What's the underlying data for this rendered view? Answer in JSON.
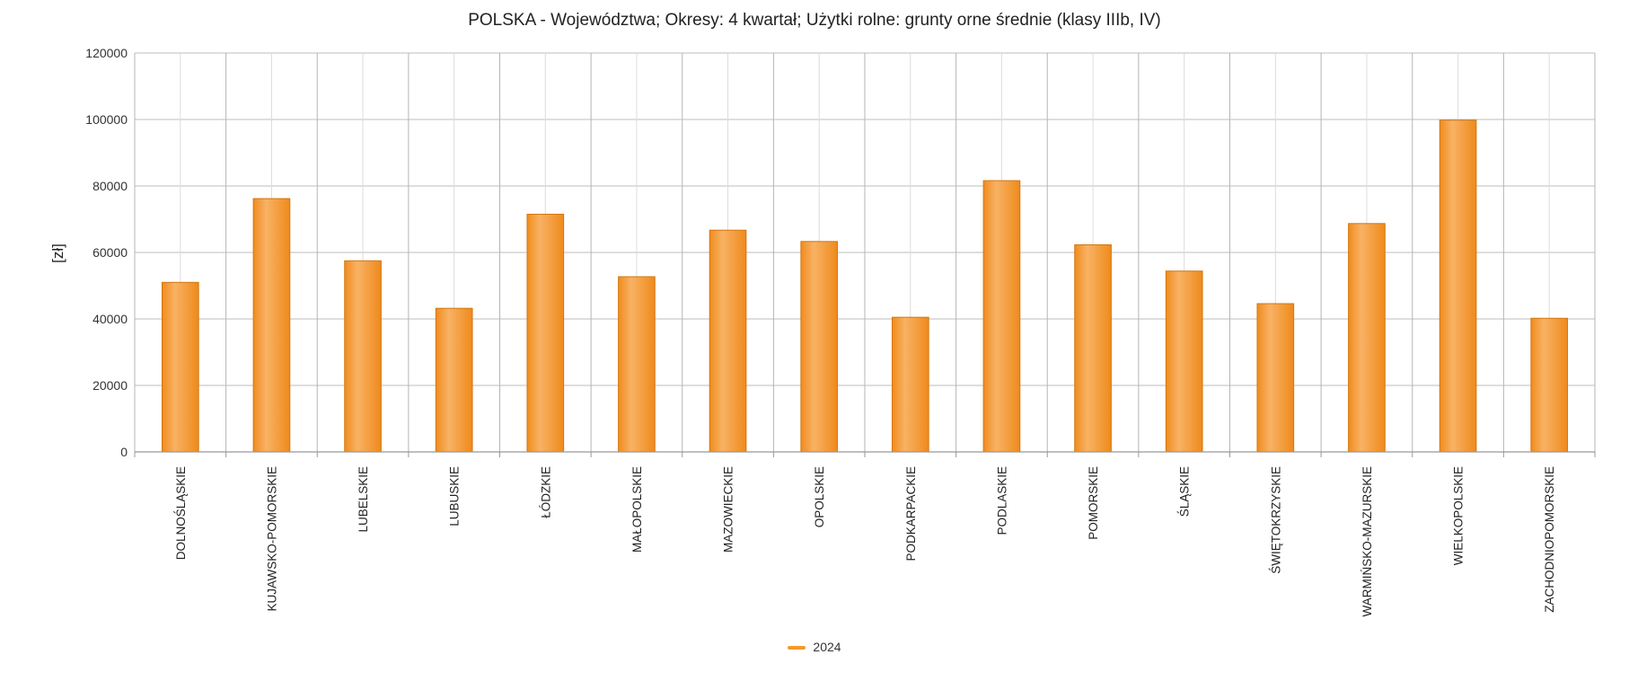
{
  "chart_data": {
    "type": "bar",
    "title": "POLSKA - Województwa; Okresy: 4 kwartał; Użytki rolne: grunty orne średnie (klasy IIIb, IV)",
    "ylabel": "[zł]",
    "xlabel": "",
    "ylim": [
      0,
      120000
    ],
    "yticks": [
      "0",
      "20000",
      "40000",
      "60000",
      "80000",
      "100000",
      "120000"
    ],
    "grid": true,
    "legend_position": "bottom",
    "categories": [
      "DOLNOŚLĄSKIE",
      "KUJAWSKO-POMORSKIE",
      "LUBELSKIE",
      "LUBUSKIE",
      "ŁÓDZKIE",
      "MAŁOPOLSKIE",
      "MAZOWIECKIE",
      "OPOLSKIE",
      "PODKARPACKIE",
      "PODLASKIE",
      "POMORSKIE",
      "ŚLĄSKIE",
      "ŚWIĘTOKRZYSKIE",
      "WARMIŃSKO-MAZURSKIE",
      "WIELKOPOLSKIE",
      "ZACHODNIOPOMORSKIE"
    ],
    "series": [
      {
        "name": "2024",
        "color": "#f39a2b",
        "values": [
          51000,
          76200,
          57500,
          43200,
          71500,
          52700,
          66700,
          63300,
          40500,
          81600,
          62300,
          54400,
          44600,
          68700,
          99800,
          40200
        ]
      }
    ]
  }
}
